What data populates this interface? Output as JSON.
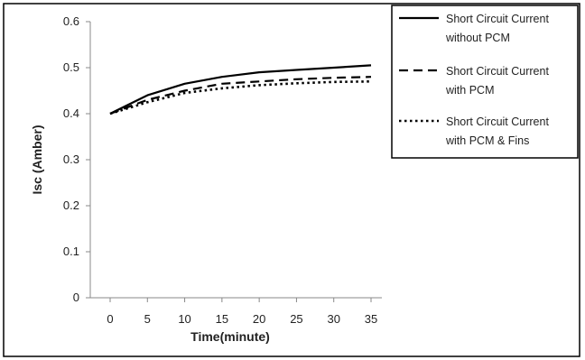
{
  "chart_data": {
    "type": "line",
    "title": "",
    "xlabel": "Time(minute)",
    "ylabel": "Isc (Amber)",
    "x": [
      0,
      5,
      10,
      15,
      20,
      25,
      30,
      35
    ],
    "x_ticks": [
      "0",
      "5",
      "10",
      "15",
      "20",
      "25",
      "30",
      "35"
    ],
    "y_ticks": [
      "0",
      "0.1",
      "0.2",
      "0.3",
      "0.4",
      "0.5",
      "0.6"
    ],
    "ylim": [
      0,
      0.6
    ],
    "grid": false,
    "legend_position": "top-right",
    "series": [
      {
        "name_lines": [
          "Short Circuit Current",
          "without PCM"
        ],
        "style": "solid",
        "values": [
          0.4,
          0.44,
          0.465,
          0.48,
          0.49,
          0.495,
          0.5,
          0.505
        ]
      },
      {
        "name_lines": [
          "Short Circuit Current",
          "with PCM"
        ],
        "style": "dashed",
        "values": [
          0.4,
          0.43,
          0.45,
          0.465,
          0.47,
          0.475,
          0.478,
          0.48
        ]
      },
      {
        "name_lines": [
          "Short Circuit Current",
          "with PCM & Fins"
        ],
        "style": "dotted",
        "values": [
          0.4,
          0.425,
          0.445,
          0.455,
          0.462,
          0.466,
          0.469,
          0.47
        ]
      }
    ]
  }
}
